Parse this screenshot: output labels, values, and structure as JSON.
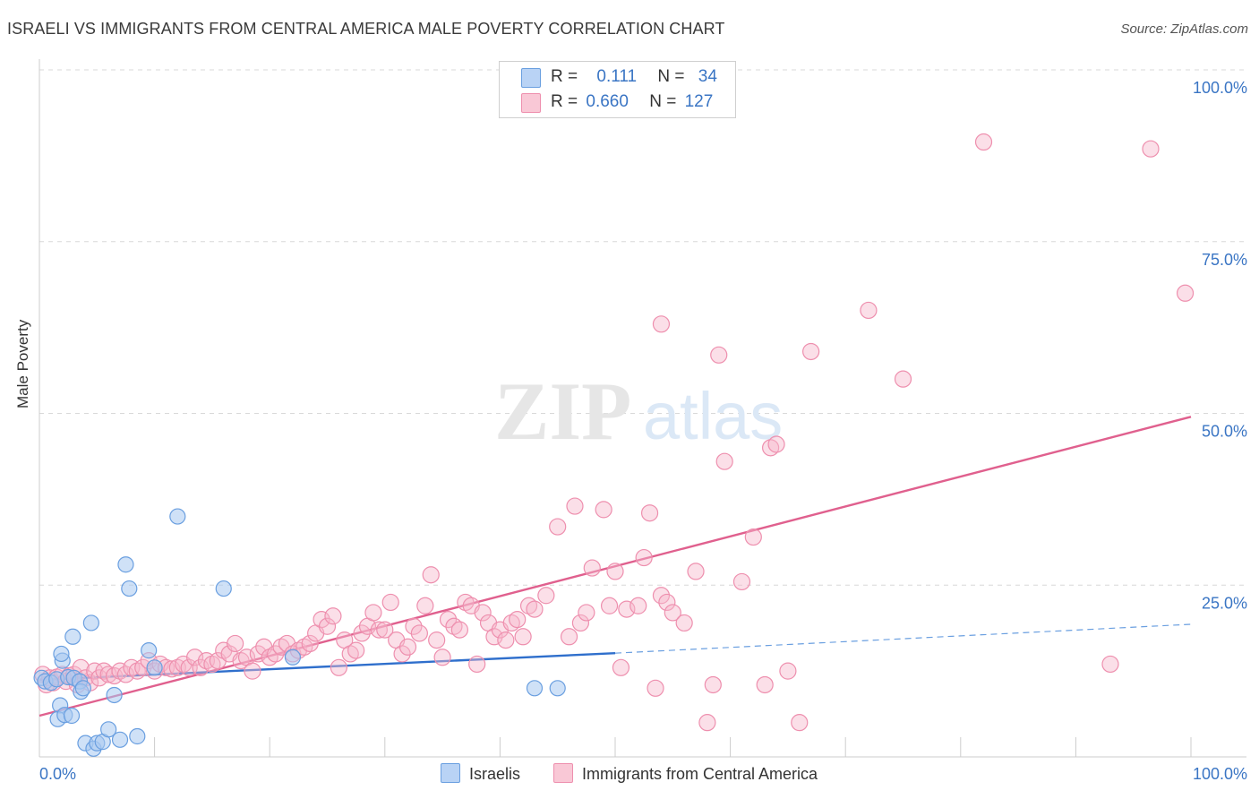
{
  "title": "ISRAELI VS IMMIGRANTS FROM CENTRAL AMERICA MALE POVERTY CORRELATION CHART",
  "source": "Source: ZipAtlas.com",
  "watermark": {
    "zip": "ZIP",
    "atlas": "atlas"
  },
  "legend": {
    "israelis": {
      "r_label": "R =",
      "r_value": "0.111",
      "n_label": "N =",
      "n_value": "34"
    },
    "central_america": {
      "r_label": "R =",
      "r_value": "0.660",
      "n_label": "N =",
      "n_value": "127"
    }
  },
  "colors": {
    "israelis_fill": "#a8c8f0",
    "israelis_stroke": "#6a9fe0",
    "israelis_line": "#2f6fcc",
    "ca_fill": "#f7b8cb",
    "ca_stroke": "#ee8fae",
    "ca_line": "#e0608e",
    "tick_label": "#3a75c4",
    "grid": "#d8d8d8"
  },
  "chart_data": {
    "type": "scatter",
    "xlabel": "",
    "ylabel": "Male Poverty",
    "xlim": [
      0,
      100
    ],
    "ylim": [
      0,
      100
    ],
    "x_tick_labels": [
      "0.0%",
      "100.0%"
    ],
    "y_tick_labels": [
      "100.0%",
      "75.0%",
      "50.0%",
      "25.0%"
    ],
    "y_ticks": [
      100,
      75,
      50,
      25
    ],
    "grid": true,
    "legend_position": "top-center",
    "series": [
      {
        "name": "Israelis",
        "r": 0.111,
        "n": 34,
        "points": [
          [
            0.2,
            11.5
          ],
          [
            0.5,
            11
          ],
          [
            1,
            10.8
          ],
          [
            1.5,
            11.3
          ],
          [
            1.8,
            7.5
          ],
          [
            1.6,
            5.5
          ],
          [
            2,
            14
          ],
          [
            1.9,
            15
          ],
          [
            2.2,
            6.1
          ],
          [
            2.5,
            11.6
          ],
          [
            2.8,
            6
          ],
          [
            2.9,
            17.5
          ],
          [
            3,
            11.5
          ],
          [
            3.5,
            11
          ],
          [
            3.6,
            9.5
          ],
          [
            3.8,
            10
          ],
          [
            4,
            2
          ],
          [
            4.5,
            19.5
          ],
          [
            4.7,
            1.2
          ],
          [
            5,
            2
          ],
          [
            5.5,
            2.2
          ],
          [
            6,
            4
          ],
          [
            6.5,
            9
          ],
          [
            7,
            2.5
          ],
          [
            7.5,
            28
          ],
          [
            7.8,
            24.5
          ],
          [
            8.5,
            3
          ],
          [
            9.5,
            15.5
          ],
          [
            10,
            13
          ],
          [
            12,
            35
          ],
          [
            16,
            24.5
          ],
          [
            22,
            14.5
          ],
          [
            43,
            10
          ],
          [
            45,
            10
          ]
        ],
        "trend": {
          "x": [
            0,
            50
          ],
          "y": [
            11.2,
            15.1
          ],
          "dashed_extension": {
            "x": [
              50,
              100
            ],
            "y": [
              15.1,
              19.3
            ]
          }
        }
      },
      {
        "name": "Immigrants from Central America",
        "r": 0.66,
        "n": 127,
        "points": [
          [
            0.3,
            12
          ],
          [
            0.6,
            10.5
          ],
          [
            0.9,
            11.5
          ],
          [
            1.2,
            10.8
          ],
          [
            1.5,
            11.6
          ],
          [
            2,
            12
          ],
          [
            2.3,
            11
          ],
          [
            2.6,
            11.8
          ],
          [
            3,
            12
          ],
          [
            3.3,
            10.5
          ],
          [
            3.6,
            13
          ],
          [
            4,
            11.5
          ],
          [
            4.4,
            10.8
          ],
          [
            4.8,
            12.5
          ],
          [
            5.2,
            11.5
          ],
          [
            5.6,
            12.5
          ],
          [
            6,
            12
          ],
          [
            6.5,
            11.8
          ],
          [
            7,
            12.5
          ],
          [
            7.5,
            12
          ],
          [
            8,
            13
          ],
          [
            8.5,
            12.5
          ],
          [
            9,
            13
          ],
          [
            9.5,
            14
          ],
          [
            10,
            12.5
          ],
          [
            10.5,
            13.5
          ],
          [
            11,
            13
          ],
          [
            11.5,
            12.8
          ],
          [
            12,
            13
          ],
          [
            12.5,
            13.5
          ],
          [
            13,
            13
          ],
          [
            13.5,
            14.5
          ],
          [
            14,
            13
          ],
          [
            14.5,
            14
          ],
          [
            15,
            13.5
          ],
          [
            15.5,
            14
          ],
          [
            16,
            15.5
          ],
          [
            16.5,
            15
          ],
          [
            17,
            16.5
          ],
          [
            17.5,
            14
          ],
          [
            18,
            14.5
          ],
          [
            18.5,
            12.5
          ],
          [
            19,
            15
          ],
          [
            19.5,
            16
          ],
          [
            20,
            14.5
          ],
          [
            20.5,
            15
          ],
          [
            21,
            16
          ],
          [
            21.5,
            16.5
          ],
          [
            22,
            15
          ],
          [
            22.5,
            15.5
          ],
          [
            23,
            16
          ],
          [
            23.5,
            16.5
          ],
          [
            24,
            18
          ],
          [
            24.5,
            20
          ],
          [
            25,
            19
          ],
          [
            25.5,
            20.5
          ],
          [
            26,
            13
          ],
          [
            26.5,
            17
          ],
          [
            27,
            15
          ],
          [
            27.5,
            15.5
          ],
          [
            28,
            18
          ],
          [
            28.5,
            19
          ],
          [
            29,
            21
          ],
          [
            29.5,
            18.5
          ],
          [
            30,
            18.5
          ],
          [
            30.5,
            22.5
          ],
          [
            31,
            17
          ],
          [
            31.5,
            15
          ],
          [
            32,
            16
          ],
          [
            32.5,
            19
          ],
          [
            33,
            18
          ],
          [
            33.5,
            22
          ],
          [
            34,
            26.5
          ],
          [
            34.5,
            17
          ],
          [
            35,
            14.5
          ],
          [
            35.5,
            20
          ],
          [
            36,
            19
          ],
          [
            36.5,
            18.5
          ],
          [
            37,
            22.5
          ],
          [
            37.5,
            22
          ],
          [
            38,
            13.5
          ],
          [
            38.5,
            21
          ],
          [
            39,
            19.5
          ],
          [
            39.5,
            17.5
          ],
          [
            40,
            18.5
          ],
          [
            40.5,
            17
          ],
          [
            41,
            19.5
          ],
          [
            41.5,
            20
          ],
          [
            42,
            17.5
          ],
          [
            42.5,
            22
          ],
          [
            43,
            21.5
          ],
          [
            44,
            23.5
          ],
          [
            45,
            33.5
          ],
          [
            46,
            17.5
          ],
          [
            46.5,
            36.5
          ],
          [
            47,
            19.5
          ],
          [
            47.5,
            21
          ],
          [
            48,
            27.5
          ],
          [
            49,
            36
          ],
          [
            49.5,
            22
          ],
          [
            50,
            27
          ],
          [
            50.5,
            13
          ],
          [
            51,
            21.5
          ],
          [
            52,
            22
          ],
          [
            52.5,
            29
          ],
          [
            53,
            35.5
          ],
          [
            53.5,
            10
          ],
          [
            54,
            23.5
          ],
          [
            54.5,
            22.5
          ],
          [
            55,
            21
          ],
          [
            56,
            19.5
          ],
          [
            57,
            27
          ],
          [
            58,
            5
          ],
          [
            58.5,
            10.5
          ],
          [
            59,
            58.5
          ],
          [
            59.5,
            43
          ],
          [
            61,
            25.5
          ],
          [
            62,
            32
          ],
          [
            63,
            10.5
          ],
          [
            63.5,
            45
          ],
          [
            64,
            45.5
          ],
          [
            65,
            12.5
          ],
          [
            66,
            5
          ],
          [
            67,
            59
          ],
          [
            75,
            55
          ],
          [
            82,
            89.5
          ],
          [
            93,
            13.5
          ],
          [
            96.5,
            88.5
          ],
          [
            99.5,
            67.5
          ],
          [
            72,
            65
          ],
          [
            54,
            63
          ]
        ],
        "trend": {
          "x": [
            0,
            100
          ],
          "y": [
            6,
            49.5
          ]
        }
      }
    ]
  }
}
